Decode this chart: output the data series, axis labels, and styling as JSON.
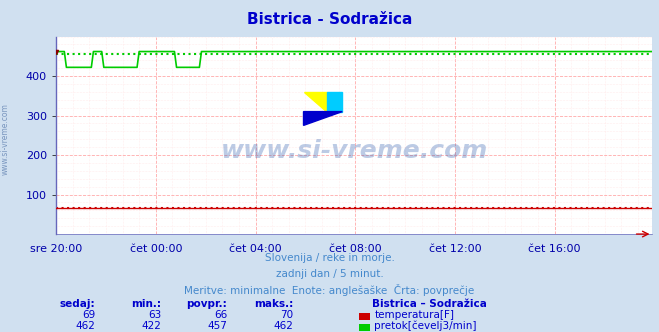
{
  "title": "Bistrica - Sodražica",
  "bg_color": "#d0e0f0",
  "plot_bg_color": "#ffffff",
  "grid_color_major": "#ffaaaa",
  "grid_color_minor": "#ffdddd",
  "title_color": "#0000cc",
  "axis_label_color": "#0000aa",
  "text_color": "#4488cc",
  "watermark": "www.si-vreme.com",
  "subtitle1": "Slovenija / reke in morje.",
  "subtitle2": "zadnji dan / 5 minut.",
  "subtitle3": "Meritve: minimalne  Enote: anglešaške  Črta: povprečje",
  "legend_title": "Bistrica – Sodražica",
  "xticklabels": [
    "sre 20:00",
    "čet 00:00",
    "čet 04:00",
    "čet 08:00",
    "čet 12:00",
    "čet 16:00"
  ],
  "yticks": [
    100,
    200,
    300,
    400
  ],
  "ylim": [
    0,
    500
  ],
  "n_points": 288,
  "temp_color": "#cc0000",
  "flow_color": "#00cc00",
  "temp_min": 63,
  "temp_max": 70,
  "temp_avg": 66,
  "temp_now": 69,
  "flow_min": 422,
  "flow_max": 462,
  "flow_avg": 457,
  "flow_now": 462,
  "table_headers": [
    "sedaj:",
    "min.:",
    "povpr.:",
    "maks.:"
  ],
  "table_color": "#0000cc",
  "sidebar_text": "www.si-vreme.com"
}
